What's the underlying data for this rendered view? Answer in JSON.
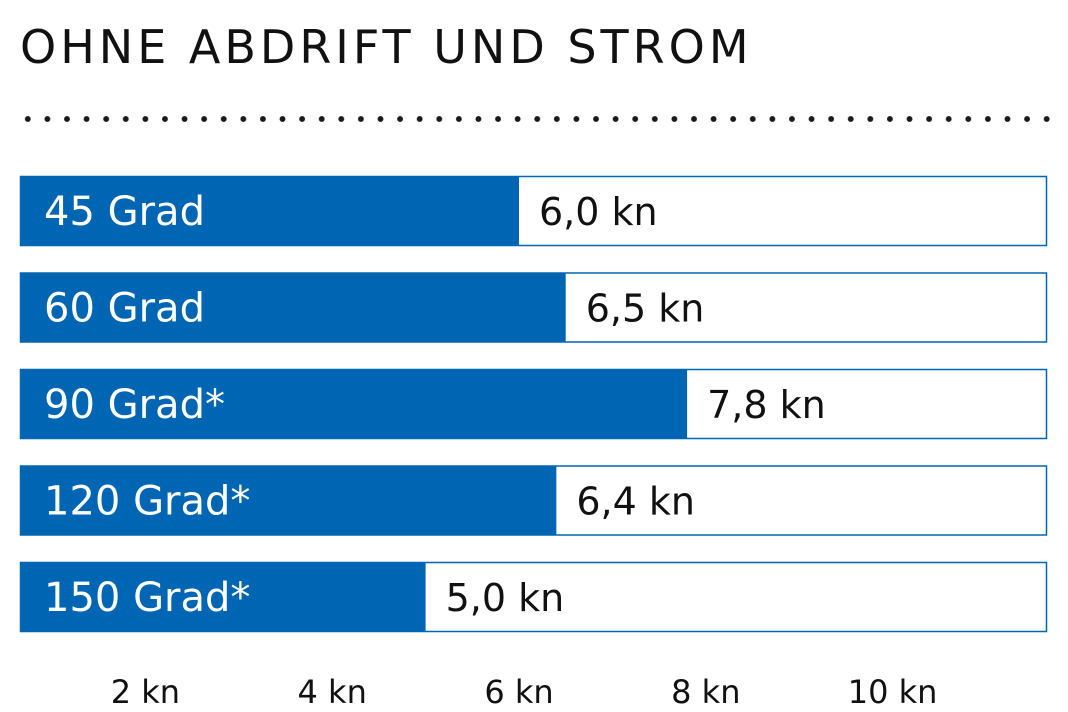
{
  "title": "OHNE ABDRIFT UND STROM",
  "colors": {
    "bar": "#0066b3",
    "track_border": "#0066b3",
    "bar_text": "#ffffff",
    "value_text": "#111111",
    "divider": "#1a1a1a"
  },
  "chart_data": {
    "type": "bar",
    "orientation": "horizontal",
    "title": "OHNE ABDRIFT UND STROM",
    "categories": [
      "45 Grad",
      "60 Grad",
      "90 Grad*",
      "120 Grad*",
      "150 Grad*"
    ],
    "values": [
      6.0,
      6.5,
      7.8,
      6.4,
      5.0
    ],
    "value_labels": [
      "6,0 kn",
      "6,5 kn",
      "7,8 kn",
      "6,4 kn",
      "5,0 kn"
    ],
    "x_ticks": [
      2,
      4,
      6,
      8,
      10
    ],
    "x_tick_labels": [
      "2 kn",
      "4 kn",
      "6 kn",
      "8 kn",
      "10 kn"
    ],
    "xlim": [
      0,
      12
    ],
    "xlabel": "",
    "ylabel": "",
    "grid": false,
    "legend": "none"
  }
}
